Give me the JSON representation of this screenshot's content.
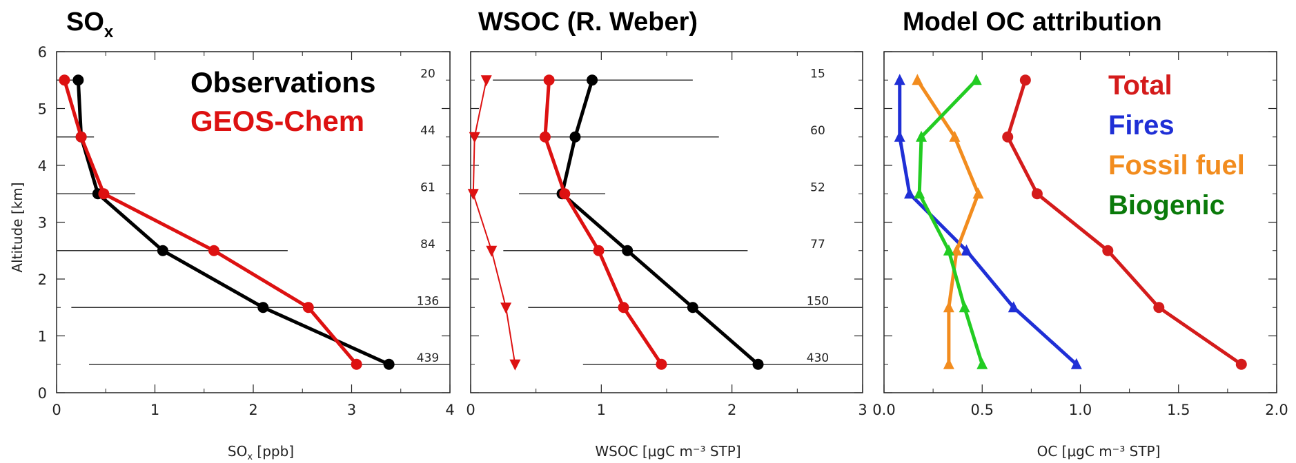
{
  "colors": {
    "observations": "#000000",
    "geos_chem": "#dd1111",
    "total": "#d41b1b",
    "fires": "#1f2fd6",
    "fossil": "#f28c1e",
    "biogenic": "#22cc22",
    "biogenic_legend": "#0a7a0a"
  },
  "chart_data": [
    {
      "type": "line",
      "title": "SO",
      "title_sub": "x",
      "xlabel": "SO",
      "xlabel_sub": "x",
      "xlabel_rest": " [ppb]",
      "ylabel": "Altitude [km]",
      "xlim": [
        0,
        4
      ],
      "ylim": [
        0,
        6
      ],
      "xticks": [
        "0",
        "1",
        "2",
        "3",
        "4"
      ],
      "yticks": [
        "0",
        "1",
        "2",
        "3",
        "4",
        "5",
        "6"
      ],
      "altitudes": [
        0.5,
        1.5,
        2.5,
        3.5,
        4.5,
        5.5
      ],
      "counts": [
        "439",
        "136",
        "84",
        "61",
        "44",
        "20"
      ],
      "legend": [
        {
          "label": "Observations",
          "color": "#000000"
        },
        {
          "label": "GEOS-Chem",
          "color": "#dd1111"
        }
      ],
      "series": [
        {
          "name": "Observations",
          "color": "#000000",
          "marker": "circle",
          "x": [
            3.38,
            2.1,
            1.08,
            0.42,
            0.25,
            0.22
          ],
          "err_lo": [
            0.33,
            0.15,
            0.0,
            0.0,
            0.0,
            0.0
          ],
          "err_hi": [
            4.0,
            4.0,
            2.35,
            0.8,
            0.38,
            0.22
          ]
        },
        {
          "name": "GEOS-Chem",
          "color": "#dd1111",
          "marker": "circle",
          "x": [
            3.05,
            2.56,
            1.6,
            0.48,
            0.25,
            0.08
          ]
        }
      ]
    },
    {
      "type": "line",
      "title": "WSOC (R. Weber)",
      "xlabel": "WSOC [μgC m⁻³ STP]",
      "xlim": [
        0,
        3
      ],
      "ylim": [
        0,
        6
      ],
      "xticks": [
        "0",
        "1",
        "2",
        "3"
      ],
      "altitudes": [
        0.5,
        1.5,
        2.5,
        3.5,
        4.5,
        5.5
      ],
      "counts": [
        "430",
        "150",
        "77",
        "52",
        "60",
        "15"
      ],
      "series": [
        {
          "name": "Observations",
          "color": "#000000",
          "marker": "circle",
          "x": [
            2.2,
            1.7,
            1.2,
            0.7,
            0.8,
            0.93
          ],
          "err_lo": [
            0.86,
            0.44,
            0.25,
            0.37,
            0.0,
            0.17
          ],
          "err_hi": [
            3.0,
            3.0,
            2.12,
            1.03,
            1.9,
            1.7
          ]
        },
        {
          "name": "GEOS-Chem",
          "color": "#dd1111",
          "marker": "circle",
          "x": [
            1.46,
            1.17,
            0.98,
            0.72,
            0.57,
            0.6
          ]
        },
        {
          "name": "GEOS-Chem",
          "color": "#dd1111",
          "marker": "triangle-down",
          "thin": true,
          "x": [
            0.34,
            0.27,
            0.16,
            0.02,
            0.03,
            0.12
          ]
        }
      ]
    },
    {
      "type": "line",
      "title": "Model OC attribution",
      "xlabel": "OC [μgC m⁻³ STP]",
      "xlim": [
        0,
        2
      ],
      "ylim": [
        0,
        6
      ],
      "xticks": [
        "0.0",
        "0.5",
        "1.0",
        "1.5",
        "2.0"
      ],
      "altitudes": [
        0.5,
        1.5,
        2.5,
        3.5,
        4.5,
        5.5
      ],
      "legend": [
        {
          "label": "Total",
          "color": "#d41b1b"
        },
        {
          "label": "Fires",
          "color": "#1f2fd6"
        },
        {
          "label": "Fossil fuel",
          "color": "#f28c1e"
        },
        {
          "label": "Biogenic",
          "color": "#0a7a0a"
        }
      ],
      "series": [
        {
          "name": "Total",
          "color": "#d41b1b",
          "marker": "circle",
          "x": [
            1.82,
            1.4,
            1.14,
            0.78,
            0.63,
            0.72
          ]
        },
        {
          "name": "Fires",
          "color": "#1f2fd6",
          "marker": "triangle-up",
          "x": [
            0.98,
            0.66,
            0.42,
            0.13,
            0.08,
            0.08
          ]
        },
        {
          "name": "Fossil fuel",
          "color": "#f28c1e",
          "marker": "triangle-up",
          "x": [
            0.33,
            0.33,
            0.37,
            0.48,
            0.36,
            0.17
          ]
        },
        {
          "name": "Biogenic",
          "color": "#22cc22",
          "marker": "triangle-up",
          "x": [
            0.5,
            0.41,
            0.33,
            0.18,
            0.19,
            0.47
          ]
        }
      ]
    }
  ]
}
